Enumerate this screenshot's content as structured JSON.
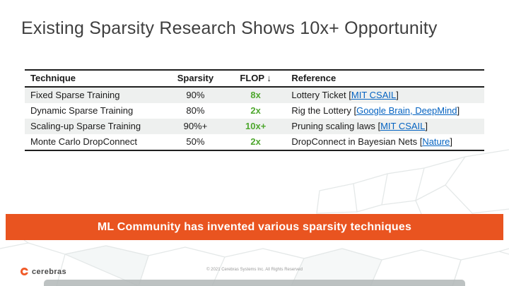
{
  "slide": {
    "title": "Existing Sparsity Research Shows 10x+ Opportunity",
    "banner_text": "ML Community has invented various sparsity techniques",
    "footer": {
      "logo_text": "cerebras",
      "copyright": "© 2021 Cerebras Systems Inc. All Rights Reserved"
    },
    "colors": {
      "accent_orange": "#E95420",
      "flop_green": "#4EA72E",
      "link_blue": "#0563C1"
    }
  },
  "table": {
    "headers": [
      "Technique",
      "Sparsity",
      "FLOP ↓",
      "Reference"
    ],
    "rows": [
      {
        "technique": "Fixed Sparse Training",
        "sparsity": "90%",
        "flop": "8x",
        "reference": "Lottery Ticket",
        "link": "MIT CSAIL"
      },
      {
        "technique": "Dynamic Sparse Training",
        "sparsity": "80%",
        "flop": "2x",
        "reference": "Rig the Lottery",
        "link": "Google Brain, DeepMind"
      },
      {
        "technique": "Scaling-up Sparse Training",
        "sparsity": "90%+",
        "flop": "10x+",
        "reference": "Pruning scaling laws",
        "link": "MIT CSAIL"
      },
      {
        "technique": "Monte Carlo DropConnect",
        "sparsity": "50%",
        "flop": "2x",
        "reference": "DropConnect in Bayesian Nets",
        "link": "Nature"
      }
    ]
  }
}
